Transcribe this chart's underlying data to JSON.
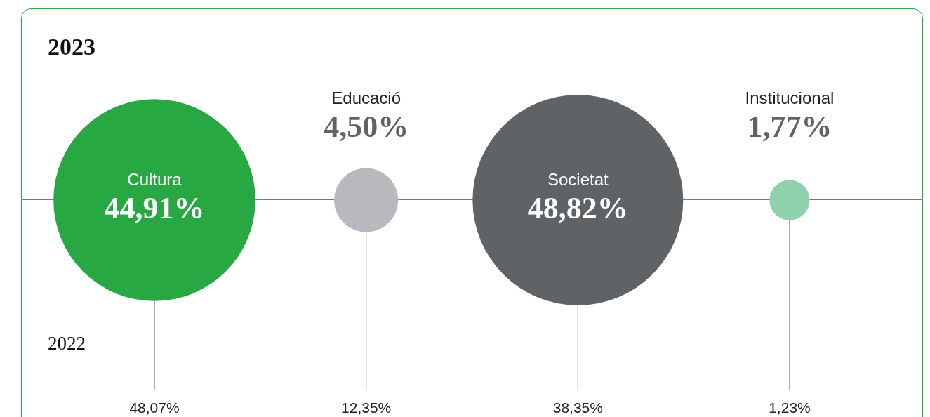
{
  "chart_data": {
    "type": "other",
    "title": "2023",
    "categories": [
      "Cultura",
      "Educació",
      "Societat",
      "Institucional"
    ],
    "series": [
      {
        "values": [
          44.91,
          4.5,
          48.82,
          1.77
        ],
        "value_labels": [
          "44,91%",
          "4,50%",
          "48,82%",
          "1,77%"
        ],
        "colors": [
          "#27a843",
          "#bab8bf",
          "#606366",
          "#8fd1ad"
        ]
      },
      {
        "name": "2022",
        "values": [
          48.07,
          12.35,
          38.35,
          1.23
        ],
        "value_labels": [
          "48,07%",
          "12,35%",
          "38,35%",
          "1,23%"
        ],
        "color": "#222222"
      }
    ]
  }
}
